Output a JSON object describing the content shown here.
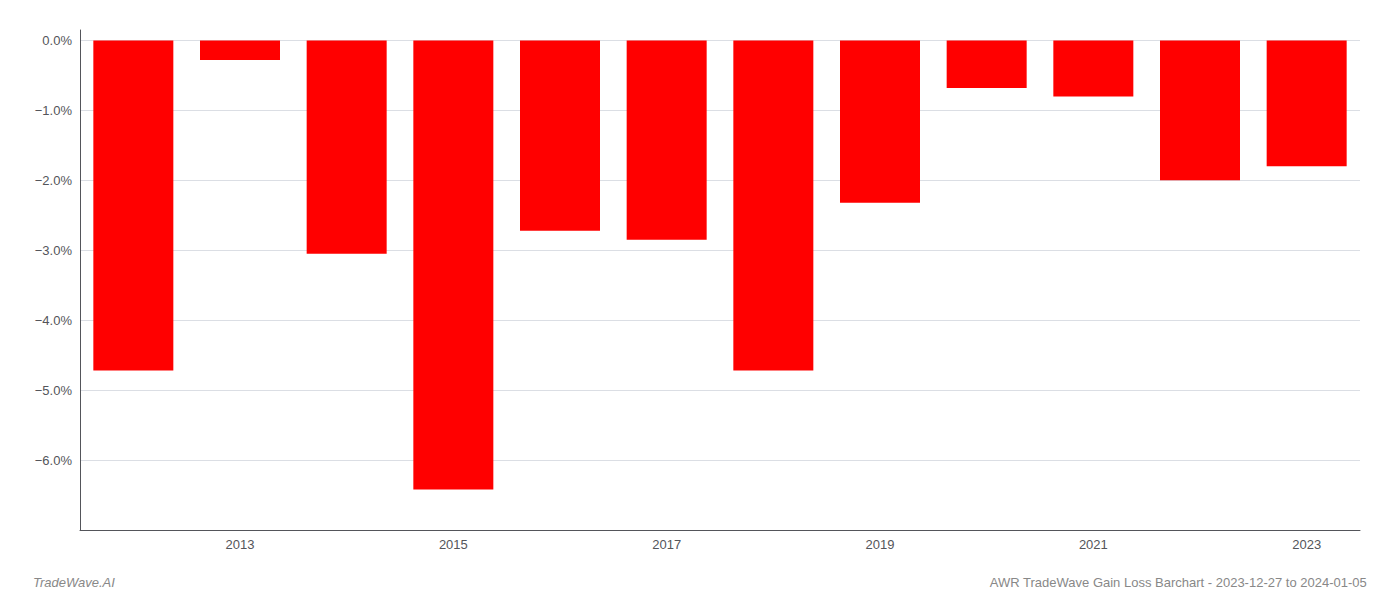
{
  "chart_data": {
    "type": "bar",
    "categories": [
      null,
      "2013",
      null,
      "2015",
      null,
      "2017",
      null,
      "2019",
      null,
      "2021",
      null,
      "2023"
    ],
    "values": [
      -4.72,
      -0.28,
      -3.05,
      -6.42,
      -2.72,
      -2.85,
      -4.72,
      -2.32,
      -0.68,
      -0.8,
      -2.0,
      -1.8
    ],
    "color": "#FF0000",
    "ylim": [
      -7.0,
      0.15
    ],
    "yticks": [
      {
        "value": 0.0,
        "label": "0.0%"
      },
      {
        "value": -1.0,
        "label": "−1.0%"
      },
      {
        "value": -2.0,
        "label": "−2.0%"
      },
      {
        "value": -3.0,
        "label": "−3.0%"
      },
      {
        "value": -4.0,
        "label": "−4.0%"
      },
      {
        "value": -5.0,
        "label": "−5.0%"
      },
      {
        "value": -6.0,
        "label": "−6.0%"
      }
    ],
    "grid": true,
    "annotations": [
      "TradeWave.AI",
      "AWR TradeWave Gain Loss Barchart - 2023-12-27 to 2024-01-05"
    ]
  }
}
